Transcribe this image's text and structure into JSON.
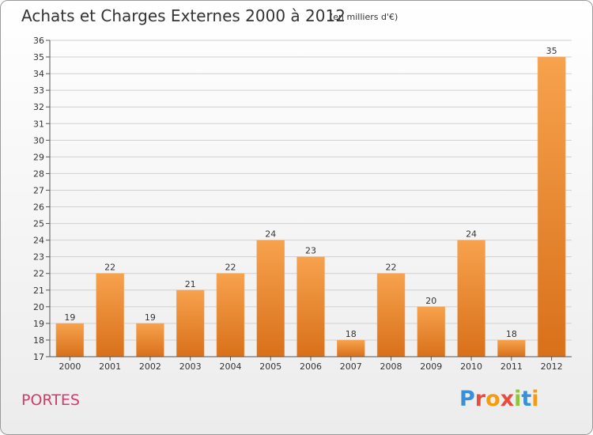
{
  "chart_data": {
    "type": "bar",
    "title": "Achats et Charges Externes 2000 à 2012",
    "subtitle": "(en milliers d'€)",
    "categories": [
      "2000",
      "2001",
      "2002",
      "2003",
      "2004",
      "2005",
      "2006",
      "2007",
      "2008",
      "2009",
      "2010",
      "2011",
      "2012"
    ],
    "values": [
      19,
      22,
      19,
      21,
      22,
      24,
      23,
      18,
      22,
      20,
      24,
      18,
      35
    ],
    "ylim": [
      17,
      36
    ],
    "ytick_step": 1,
    "grid": true,
    "legend": "none",
    "bar_color_top": "#f7a24d",
    "bar_color_bottom": "#d9701a"
  },
  "footer": {
    "town": "PORTES",
    "logo": "Proxiti",
    "logo_colors": [
      "#3a8fd6",
      "#e84c3d",
      "#f39c12",
      "#e84c3d",
      "#8fc43b",
      "#3a8fd6",
      "#f39c12"
    ]
  }
}
